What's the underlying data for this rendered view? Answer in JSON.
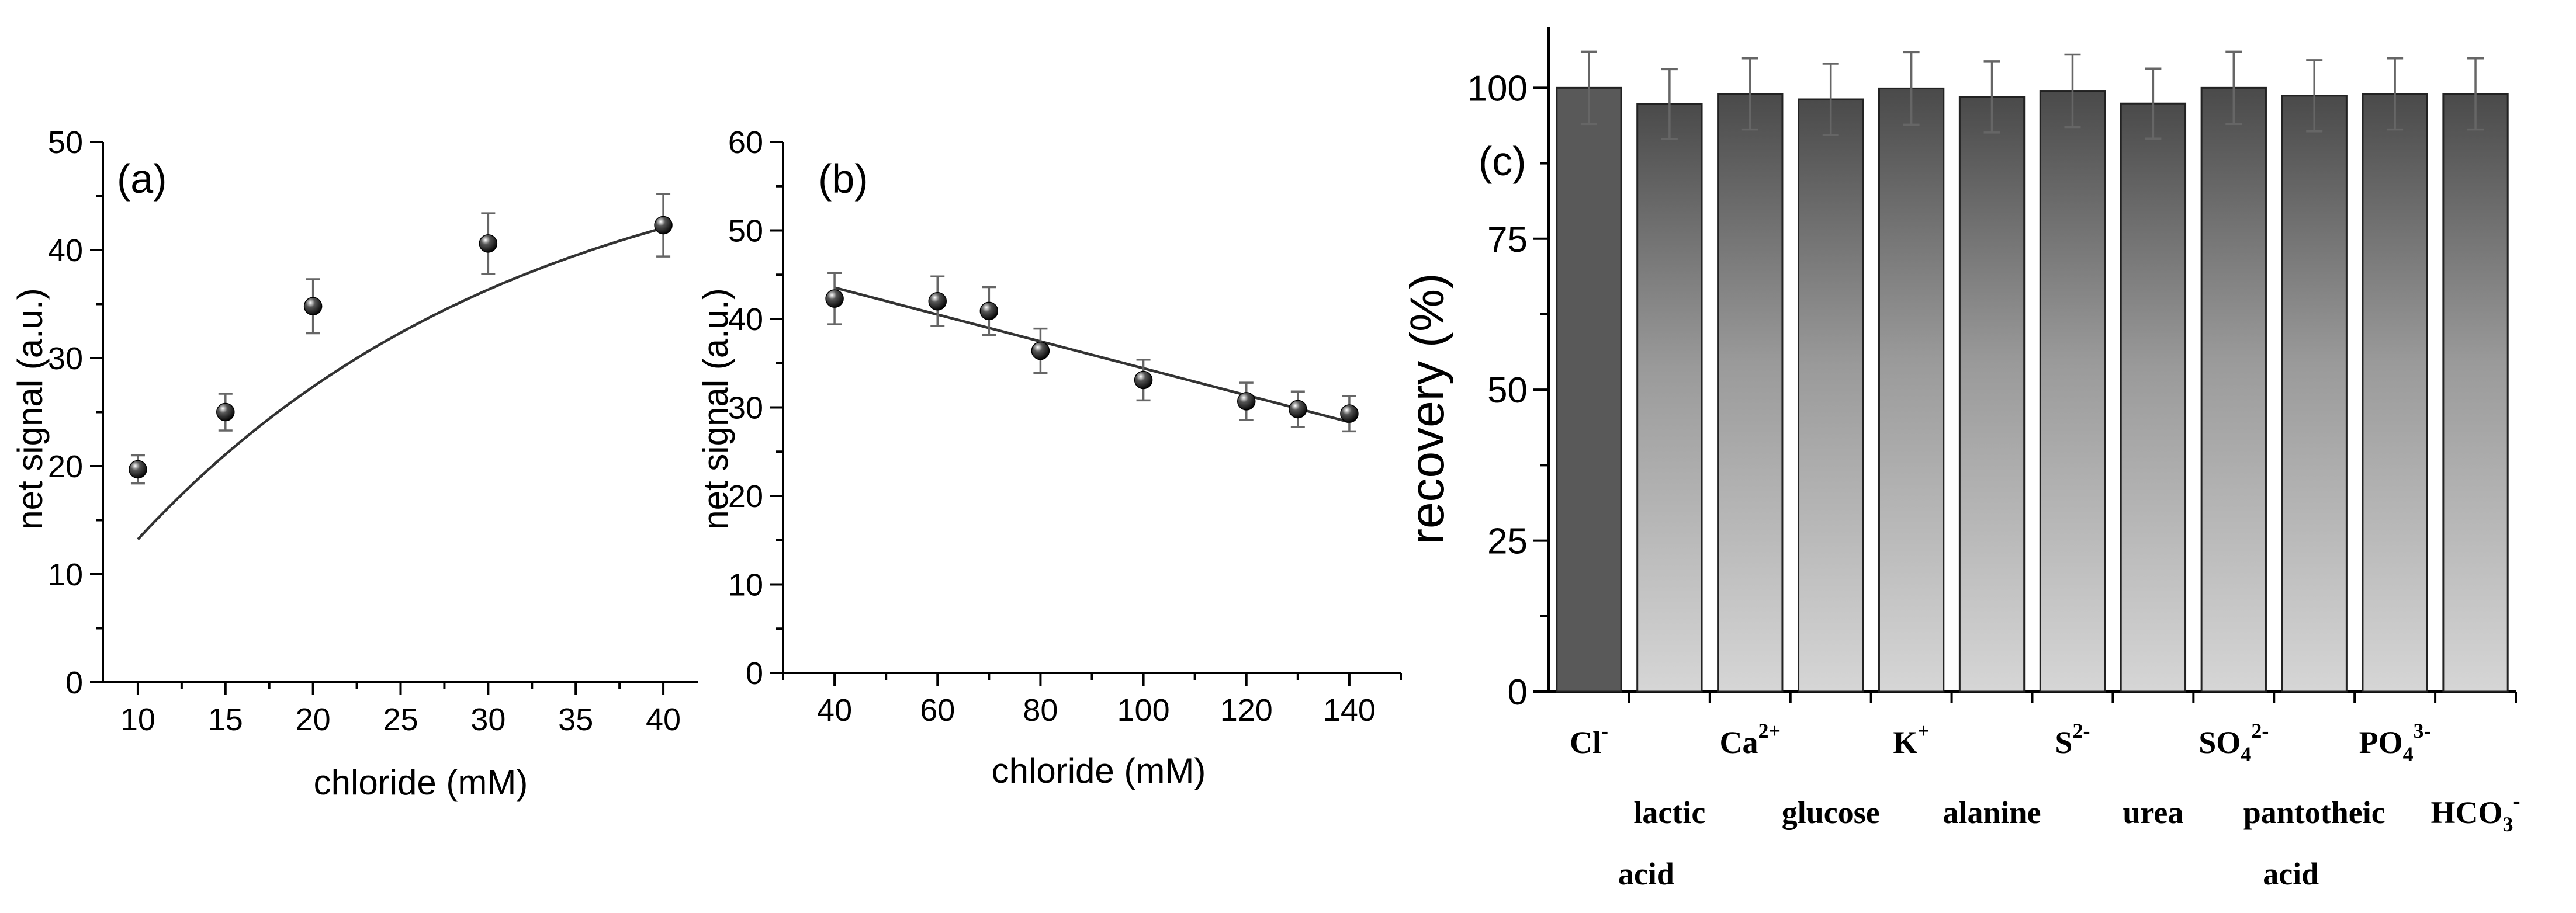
{
  "chart_data": [
    {
      "type": "scatter",
      "panel_label": "(a)",
      "xlabel": "chloride (mM)",
      "ylabel": "net signal (a.u.)",
      "xlim": [
        8,
        42
      ],
      "ylim": [
        0,
        50
      ],
      "xticks": [
        "10",
        "15",
        "20",
        "25",
        "30",
        "35",
        "40"
      ],
      "yticks": [
        "0",
        "10",
        "20",
        "30",
        "40",
        "50"
      ],
      "fit": "curve",
      "points": [
        {
          "x": 10,
          "y": 19.7,
          "err": 1.3
        },
        {
          "x": 15,
          "y": 25.0,
          "err": 1.7
        },
        {
          "x": 20,
          "y": 34.8,
          "err": 2.5
        },
        {
          "x": 30,
          "y": 40.6,
          "err": 2.8
        },
        {
          "x": 40,
          "y": 42.3,
          "err": 2.9
        }
      ]
    },
    {
      "type": "scatter",
      "panel_label": "(b)",
      "xlabel": "chloride (mM)",
      "ylabel": "net signal (a.u.)",
      "xlim": [
        30,
        150
      ],
      "ylim": [
        0,
        60
      ],
      "xticks": [
        "40",
        "60",
        "80",
        "100",
        "120",
        "140"
      ],
      "yticks": [
        "0",
        "10",
        "20",
        "30",
        "40",
        "50",
        "60"
      ],
      "fit": "linear",
      "points": [
        {
          "x": 40,
          "y": 42.3,
          "err": 2.9
        },
        {
          "x": 60,
          "y": 42.0,
          "err": 2.8
        },
        {
          "x": 70,
          "y": 40.9,
          "err": 2.7
        },
        {
          "x": 80,
          "y": 36.4,
          "err": 2.5
        },
        {
          "x": 100,
          "y": 33.1,
          "err": 2.3
        },
        {
          "x": 120,
          "y": 30.7,
          "err": 2.1
        },
        {
          "x": 130,
          "y": 29.8,
          "err": 2.0
        },
        {
          "x": 140,
          "y": 29.3,
          "err": 2.0
        }
      ]
    },
    {
      "type": "bar",
      "panel_label": "(c)",
      "ylabel": "recovery (%)",
      "ylim": [
        0,
        110
      ],
      "yticks": [
        "0",
        "25",
        "50",
        "75",
        "100"
      ],
      "bars": [
        {
          "label": "Cl",
          "sup": "-",
          "sub": "",
          "label2": "",
          "value": 100.0,
          "err": 6.0,
          "row": "upper",
          "dark": true
        },
        {
          "label": "lactic",
          "sup": "",
          "sub": "",
          "label2": "acid",
          "value": 97.3,
          "err": 5.8,
          "row": "lower",
          "dark": false
        },
        {
          "label": "Ca",
          "sup": "2+",
          "sub": "",
          "label2": "",
          "value": 99.0,
          "err": 5.9,
          "row": "upper",
          "dark": false
        },
        {
          "label": "glucose",
          "sup": "",
          "sub": "",
          "label2": "",
          "value": 98.1,
          "err": 5.9,
          "row": "lower",
          "dark": false
        },
        {
          "label": "K",
          "sup": "+",
          "sub": "",
          "label2": "",
          "value": 99.9,
          "err": 6.0,
          "row": "upper",
          "dark": false
        },
        {
          "label": "alanine",
          "sup": "",
          "sub": "",
          "label2": "",
          "value": 98.5,
          "err": 5.9,
          "row": "lower",
          "dark": false
        },
        {
          "label": "S",
          "sup": "2-",
          "sub": "",
          "label2": "",
          "value": 99.5,
          "err": 6.0,
          "row": "upper",
          "dark": false
        },
        {
          "label": "urea",
          "sup": "",
          "sub": "",
          "label2": "",
          "value": 97.4,
          "err": 5.8,
          "row": "lower",
          "dark": false
        },
        {
          "label": "SO",
          "sup": "2-",
          "sub": "4",
          "label2": "",
          "value": 100.0,
          "err": 6.0,
          "row": "upper",
          "dark": false
        },
        {
          "label": "pantotheic",
          "sup": "",
          "sub": "",
          "label2": "acid",
          "value": 98.7,
          "err": 5.9,
          "row": "lower",
          "dark": false
        },
        {
          "label": "PO",
          "sup": "3-",
          "sub": "4",
          "label2": "",
          "value": 99.0,
          "err": 5.9,
          "row": "upper",
          "dark": false
        },
        {
          "label": "HCO",
          "sup": "-",
          "sub": "3",
          "label2": "",
          "value": 99.0,
          "err": 5.9,
          "row": "lower",
          "dark": false
        }
      ]
    }
  ]
}
